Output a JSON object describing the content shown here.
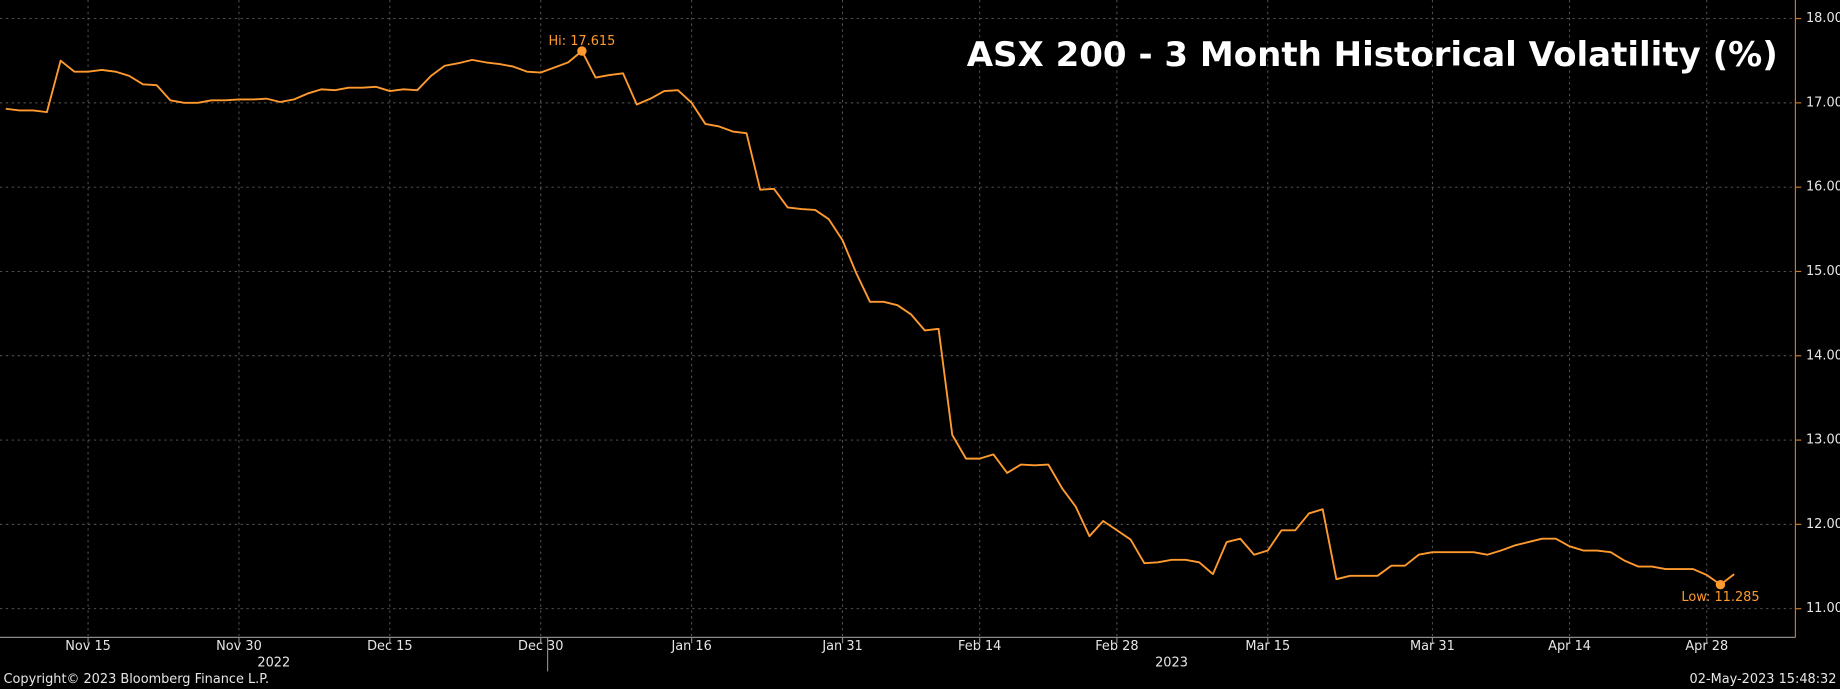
{
  "chart_data": {
    "type": "line",
    "title": "ASX 200 - 3 Month Historical Volatility (%)",
    "source": "Copyright© 2023 Bloomberg Finance L.P.",
    "timestamp": "02-May-2023 15:48:32",
    "color": "#ff9a2e",
    "grid": true,
    "categories": [
      null,
      null,
      null,
      null,
      null,
      null,
      "Nov 15",
      null,
      null,
      null,
      null,
      null,
      null,
      null,
      null,
      null,
      null,
      "Nov 30",
      null,
      null,
      null,
      null,
      null,
      null,
      null,
      null,
      null,
      null,
      "Dec 15",
      null,
      null,
      null,
      null,
      null,
      null,
      null,
      null,
      null,
      null,
      "Dec 30",
      null,
      null,
      null,
      null,
      null,
      null,
      null,
      null,
      null,
      null,
      "Jan 16",
      null,
      null,
      null,
      null,
      null,
      null,
      null,
      null,
      null,
      null,
      "Jan 31",
      null,
      null,
      null,
      null,
      null,
      null,
      null,
      null,
      null,
      "Feb 14",
      null,
      null,
      null,
      null,
      null,
      null,
      null,
      null,
      null,
      "Feb 28",
      null,
      null,
      null,
      null,
      null,
      null,
      null,
      null,
      null,
      null,
      "Mar 15",
      null,
      null,
      null,
      null,
      null,
      null,
      null,
      null,
      null,
      null,
      null,
      "Mar 31",
      null,
      null,
      null,
      null,
      null,
      null,
      null,
      null,
      null,
      "Apr 14",
      null,
      null,
      null,
      null,
      null,
      null,
      null,
      null,
      null,
      "Apr 28",
      null,
      null
    ],
    "years": [
      "2022",
      "2023"
    ],
    "year_split": "Dec 30",
    "values": [
      16.93,
      16.91,
      16.91,
      16.89,
      17.5,
      17.37,
      17.37,
      17.39,
      17.37,
      17.32,
      17.22,
      17.21,
      17.03,
      17.0,
      17.0,
      17.03,
      17.03,
      17.04,
      17.04,
      17.05,
      17.01,
      17.04,
      17.11,
      17.16,
      17.15,
      17.18,
      17.18,
      17.19,
      17.14,
      17.16,
      17.15,
      17.32,
      17.44,
      17.47,
      17.51,
      17.48,
      17.46,
      17.43,
      17.37,
      17.36,
      17.42,
      17.48,
      17.615,
      17.3,
      17.33,
      17.35,
      16.98,
      17.05,
      17.14,
      17.15,
      17.0,
      16.75,
      16.72,
      16.66,
      16.64,
      15.97,
      15.98,
      15.76,
      15.74,
      15.73,
      15.62,
      15.37,
      14.98,
      14.64,
      14.64,
      14.6,
      14.49,
      14.3,
      14.32,
      13.06,
      12.78,
      12.78,
      12.83,
      12.61,
      12.71,
      12.7,
      12.71,
      12.43,
      12.21,
      11.86,
      12.04,
      11.93,
      11.82,
      11.54,
      11.55,
      11.58,
      11.58,
      11.55,
      11.41,
      11.79,
      11.83,
      11.64,
      11.69,
      11.93,
      11.93,
      12.13,
      12.18,
      11.35,
      11.39,
      11.39,
      11.39,
      11.51,
      11.51,
      11.64,
      11.67,
      11.67,
      11.67,
      11.67,
      11.64,
      11.69,
      11.75,
      11.79,
      11.83,
      11.83,
      11.74,
      11.69,
      11.69,
      11.67,
      11.57,
      11.5,
      11.5,
      11.47,
      11.47,
      11.47,
      11.4,
      11.285,
      11.41
    ],
    "value_labels": [
      null,
      null,
      null,
      null,
      null,
      null,
      null,
      null,
      null,
      null,
      null,
      null,
      null,
      null,
      null,
      null,
      null,
      null,
      null,
      null,
      null,
      null,
      null,
      null,
      null,
      null,
      null,
      null,
      null,
      null,
      null,
      null,
      null,
      null,
      null,
      null,
      null,
      null,
      null,
      null,
      null,
      null,
      "Hi: 17.615",
      null,
      null,
      null,
      null,
      null,
      null,
      null,
      null,
      null,
      null,
      null,
      null,
      null,
      null,
      null,
      null,
      null,
      null,
      null,
      null,
      null,
      null,
      null,
      null,
      null,
      null,
      null,
      null,
      null,
      null,
      null,
      null,
      null,
      null,
      null,
      null,
      null,
      null,
      null,
      null,
      null,
      null,
      null,
      null,
      null,
      null,
      null,
      null,
      null,
      null,
      null,
      null,
      null,
      null,
      null,
      null,
      null,
      null,
      null,
      null,
      null,
      null,
      null,
      null,
      null,
      null,
      null,
      null,
      null,
      null,
      null,
      null,
      null,
      null,
      null,
      null,
      null,
      null,
      null,
      null,
      null,
      null,
      "Low: 11.285",
      null
    ],
    "ylim": [
      10.66,
      18.22
    ],
    "yticks": [
      {
        "value": 11,
        "label": "11.00"
      },
      {
        "value": 12,
        "label": "12.00"
      },
      {
        "value": 13,
        "label": "13.00"
      },
      {
        "value": 14,
        "label": "14.00"
      },
      {
        "value": 15,
        "label": "15.00"
      },
      {
        "value": 16,
        "label": "16.00"
      },
      {
        "value": 17,
        "label": "17.00"
      },
      {
        "value": 18,
        "label": "18.00"
      }
    ]
  }
}
